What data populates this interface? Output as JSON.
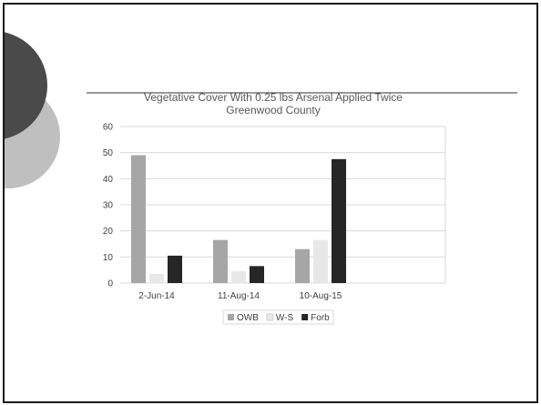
{
  "colors": {
    "circle_dark": "#4a4a4a",
    "circle_light": "#bfbfbf",
    "title_rule": "#333333",
    "grid": "#d9d9d9",
    "legend_border": "#d9d9d9"
  },
  "chart_data": {
    "type": "bar",
    "title_lines": [
      "Vegetative Cover With 0.25 lbs Arsenal Applied Twice",
      "Greenwood County"
    ],
    "xlabel": "",
    "ylabel": "",
    "categories": [
      "2-Jun-14",
      "11-Aug-14",
      "10-Aug-15"
    ],
    "ylim": [
      0,
      60
    ],
    "yticks": [
      0,
      10,
      20,
      30,
      40,
      50,
      60
    ],
    "grid": true,
    "legend_position": "bottom",
    "series": [
      {
        "name": "OWB",
        "color": "#a6a6a6",
        "values": [
          49,
          16.5,
          13
        ]
      },
      {
        "name": "W-S",
        "color": "#e8e8e8",
        "values": [
          3.5,
          4.5,
          16.5
        ]
      },
      {
        "name": "Forb",
        "color": "#262626",
        "values": [
          10.5,
          6.5,
          47.5
        ]
      }
    ]
  }
}
